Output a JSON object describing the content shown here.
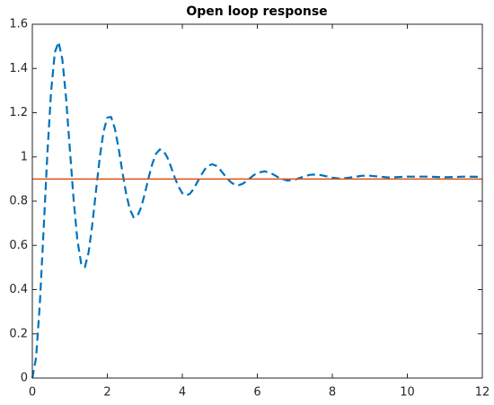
{
  "chart_data": {
    "type": "line",
    "title": "Open loop response",
    "xlim": [
      0,
      12
    ],
    "xticks": [
      0,
      2,
      4,
      6,
      8,
      10,
      12
    ],
    "ylim": [
      0,
      1.6
    ],
    "yticks": [
      0,
      0.2,
      0.4,
      0.6,
      0.8,
      1,
      1.2,
      1.4,
      1.6
    ],
    "grid": false,
    "series": [
      {
        "color": "#0072BD",
        "dash": true,
        "x": [
          0,
          0.1,
          0.2,
          0.3,
          0.4,
          0.5,
          0.6,
          0.7,
          0.8,
          0.9,
          1,
          1.1,
          1.2,
          1.3,
          1.4,
          1.5,
          1.6,
          1.7,
          1.8,
          1.9,
          2,
          2.1,
          2.2,
          2.3,
          2.4,
          2.5,
          2.6,
          2.7,
          2.8,
          2.9,
          3,
          3.1,
          3.2,
          3.3,
          3.4,
          3.5,
          3.6,
          3.7,
          3.8,
          3.9,
          4,
          4.1,
          4.2,
          4.3,
          4.4,
          4.5,
          4.6,
          4.7,
          4.8,
          4.9,
          5,
          5.1,
          5.2,
          5.3,
          5.4,
          5.5,
          5.6,
          5.7,
          5.8,
          5.9,
          6,
          6.2,
          6.4,
          6.6,
          6.8,
          7,
          7.2,
          7.4,
          7.6,
          7.8,
          8,
          8.2,
          8.4,
          8.6,
          8.8,
          9,
          9.5,
          10,
          10.5,
          11,
          11.5,
          12
        ],
        "values": [
          0,
          0.092,
          0.336,
          0.668,
          1.011,
          1.296,
          1.473,
          1.52,
          1.441,
          1.266,
          1.036,
          0.809,
          0.626,
          0.519,
          0.501,
          0.568,
          0.695,
          0.85,
          1.0,
          1.116,
          1.178,
          1.181,
          1.129,
          1.04,
          0.934,
          0.835,
          0.763,
          0.727,
          0.732,
          0.771,
          0.834,
          0.905,
          0.969,
          1.015,
          1.034,
          1.027,
          0.998,
          0.954,
          0.906,
          0.865,
          0.836,
          0.826,
          0.833,
          0.855,
          0.886,
          0.917,
          0.944,
          0.961,
          0.967,
          0.96,
          0.944,
          0.923,
          0.902,
          0.885,
          0.874,
          0.872,
          0.878,
          0.889,
          0.903,
          0.917,
          0.928,
          0.935,
          0.923,
          0.904,
          0.893,
          0.897,
          0.909,
          0.919,
          0.921,
          0.914,
          0.906,
          0.902,
          0.905,
          0.91,
          0.915,
          0.915,
          0.907,
          0.911,
          0.911,
          0.908,
          0.911,
          0.91
        ]
      },
      {
        "color": "#D95319",
        "dash": false,
        "x": [
          0,
          12
        ],
        "values": [
          0.9,
          0.9
        ]
      }
    ]
  }
}
